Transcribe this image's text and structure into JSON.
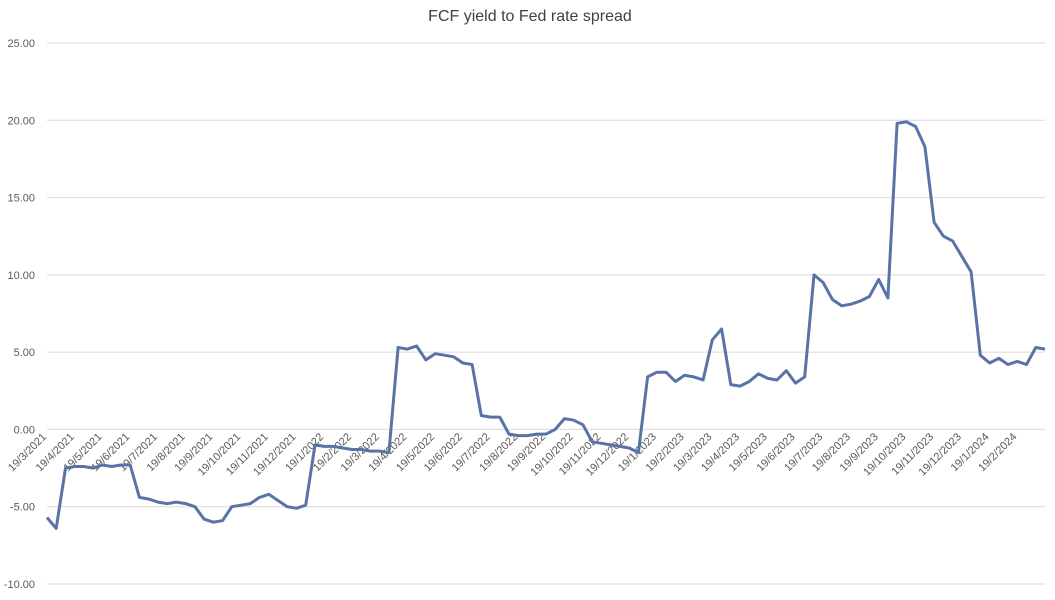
{
  "chart_data": {
    "type": "line",
    "title": "FCF yield to Fed rate spread",
    "categories": [
      "19/3/2021",
      null,
      null,
      "19/4/2021",
      null,
      null,
      "19/5/2021",
      null,
      null,
      "19/6/2021",
      null,
      null,
      "19/7/2021",
      null,
      null,
      "19/8/2021",
      null,
      null,
      "19/9/2021",
      null,
      null,
      "19/10/2021",
      null,
      null,
      "19/11/2021",
      null,
      null,
      "19/12/2021",
      null,
      null,
      "19/1/2022",
      null,
      null,
      "19/2/2022",
      null,
      null,
      "19/3/2022",
      null,
      null,
      "19/4/2022",
      null,
      null,
      "19/5/2022",
      null,
      null,
      "19/6/2022",
      null,
      null,
      "19/7/2022",
      null,
      null,
      "19/8/2022",
      null,
      null,
      "19/9/2022",
      null,
      null,
      "19/10/2022",
      null,
      null,
      "19/11/2022",
      null,
      null,
      "19/12/2022",
      null,
      null,
      "19/1/2023",
      null,
      null,
      "19/2/2023",
      null,
      null,
      "19/3/2023",
      null,
      null,
      "19/4/2023",
      null,
      null,
      "19/5/2023",
      null,
      null,
      "19/6/2023",
      null,
      null,
      "19/7/2023",
      null,
      null,
      "19/8/2023",
      null,
      null,
      "19/9/2023",
      null,
      null,
      "19/10/2023",
      null,
      null,
      "19/11/2023",
      null,
      null,
      "19/12/2023",
      null,
      null,
      "19/1/2024",
      null,
      null,
      "19/2/2024",
      null,
      null,
      null
    ],
    "values": [
      -5.7,
      -6.4,
      -2.5,
      -2.4,
      -2.4,
      -2.5,
      -2.3,
      -2.4,
      -2.3,
      -2.3,
      -4.4,
      -4.5,
      -4.7,
      -4.8,
      -4.7,
      -4.8,
      -5.0,
      -5.8,
      -6.0,
      -5.9,
      -5.0,
      -4.9,
      -4.8,
      -4.4,
      -4.2,
      -4.6,
      -5.0,
      -5.1,
      -4.9,
      -1.0,
      -1.1,
      -1.1,
      -1.2,
      -1.3,
      -1.3,
      -1.4,
      -1.4,
      -1.5,
      5.3,
      5.2,
      5.4,
      4.5,
      4.9,
      4.8,
      4.7,
      4.3,
      4.2,
      0.9,
      0.8,
      0.8,
      -0.3,
      -0.4,
      -0.4,
      -0.3,
      -0.3,
      0.0,
      0.7,
      0.6,
      0.3,
      -0.8,
      -0.9,
      -1.0,
      -1.1,
      -1.2,
      -1.5,
      3.4,
      3.7,
      3.7,
      3.1,
      3.5,
      3.4,
      3.2,
      5.8,
      6.5,
      2.9,
      2.8,
      3.1,
      3.6,
      3.3,
      3.2,
      3.8,
      3.0,
      3.4,
      10.0,
      9.5,
      8.4,
      8.0,
      8.1,
      8.3,
      8.6,
      9.7,
      8.5,
      19.8,
      19.9,
      19.6,
      18.3,
      13.4,
      12.5,
      12.2,
      11.2,
      10.2,
      4.8,
      4.3,
      4.6,
      4.2,
      4.4,
      4.2,
      5.3,
      5.2
    ],
    "color": "#5a73a7",
    "ylim": [
      -10,
      25
    ],
    "yticks": [
      {
        "value": -10,
        "label": "-10.00"
      },
      {
        "value": -5,
        "label": "-5.00"
      },
      {
        "value": 0,
        "label": "0.00"
      },
      {
        "value": 5,
        "label": "5.00"
      },
      {
        "value": 10,
        "label": "10.00"
      },
      {
        "value": 15,
        "label": "15.00"
      },
      {
        "value": 20,
        "label": "20.00"
      },
      {
        "value": 25,
        "label": "25.00"
      }
    ],
    "grid": true
  }
}
